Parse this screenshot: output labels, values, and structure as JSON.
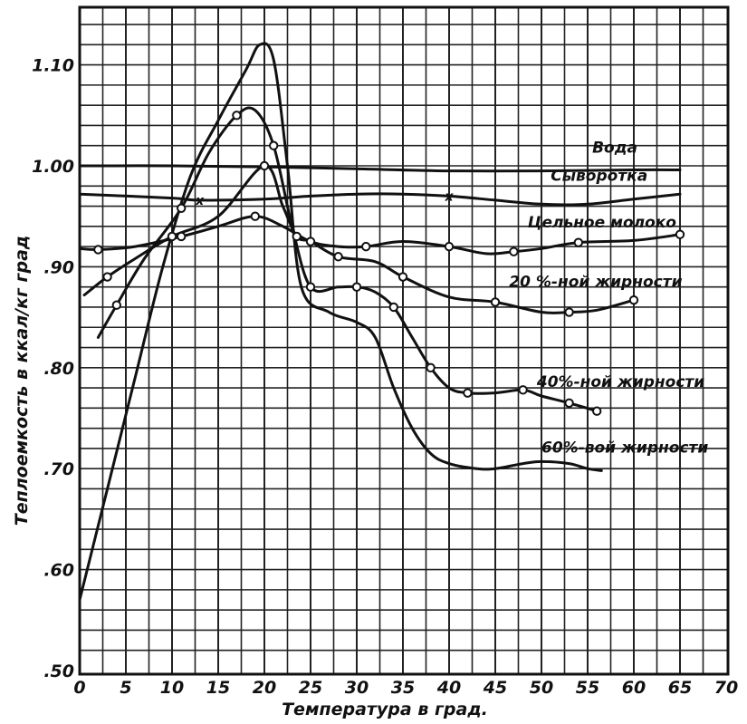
{
  "chart_data": {
    "type": "line",
    "title": "",
    "xlabel": "Температура  в  град.",
    "ylabel": "Теплоемкость  в ккал/кг град",
    "xlim": [
      0,
      70
    ],
    "ylim": [
      0.5,
      1.15
    ],
    "grid": true,
    "legend": "inline labels",
    "x_ticks": [
      "0",
      "5",
      "10",
      "15",
      "20",
      "25",
      "30",
      "35",
      "40",
      "45",
      "50",
      "55",
      "60",
      "65",
      "70"
    ],
    "y_ticks": [
      {
        "value": 0.5,
        "label": ".50"
      },
      {
        "value": 0.6,
        "label": ".60"
      },
      {
        "value": 0.7,
        "label": ".70"
      },
      {
        "value": 0.8,
        "label": ".80"
      },
      {
        "value": 0.9,
        "label": ".90"
      },
      {
        "value": 1.0,
        "label": "1.00"
      },
      {
        "value": 1.1,
        "label": "1.10"
      }
    ],
    "series": [
      {
        "name": "Вода",
        "color": "#111111",
        "marker": "none",
        "x": [
          0,
          10,
          20,
          30,
          40,
          50,
          60,
          65
        ],
        "y": [
          1.0,
          1.0,
          0.999,
          0.997,
          0.995,
          0.995,
          0.996,
          0.996
        ]
      },
      {
        "name": "Сыворотка",
        "color": "#111111",
        "marker": "x",
        "x": [
          0,
          10,
          13,
          20,
          25,
          30,
          35,
          40,
          45,
          50,
          55,
          60,
          65
        ],
        "y": [
          0.972,
          0.968,
          0.966,
          0.967,
          0.97,
          0.972,
          0.972,
          0.97,
          0.966,
          0.962,
          0.962,
          0.967,
          0.972
        ]
      },
      {
        "name": "Цельное молоко",
        "color": "#111111",
        "marker": "circle",
        "x": [
          0,
          2,
          6,
          11,
          15,
          19,
          22,
          25,
          28,
          31,
          35,
          40,
          44,
          47,
          50,
          54,
          60,
          65
        ],
        "y": [
          0.918,
          0.917,
          0.92,
          0.93,
          0.94,
          0.95,
          0.94,
          0.925,
          0.92,
          0.92,
          0.925,
          0.92,
          0.913,
          0.915,
          0.918,
          0.924,
          0.926,
          0.932
        ]
      },
      {
        "name": "20 %-ной жирности",
        "color": "#111111",
        "marker": "circle",
        "x": [
          0.5,
          3,
          6,
          10,
          15,
          20,
          22,
          23.5,
          25,
          28,
          32,
          35,
          40,
          45,
          50,
          53,
          56,
          60
        ],
        "y": [
          0.872,
          0.89,
          0.908,
          0.93,
          0.95,
          1.0,
          0.96,
          0.93,
          0.925,
          0.91,
          0.905,
          0.89,
          0.87,
          0.865,
          0.855,
          0.855,
          0.857,
          0.867
        ]
      },
      {
        "name": "40%-ной жирности",
        "color": "#111111",
        "marker": "circle",
        "x": [
          2,
          4,
          7,
          11,
          14,
          17,
          19,
          21,
          23,
          25,
          28,
          30,
          32,
          34,
          36,
          38,
          40,
          42,
          45,
          48,
          50,
          53,
          56
        ],
        "y": [
          0.83,
          0.862,
          0.908,
          0.958,
          1.013,
          1.05,
          1.055,
          1.02,
          0.94,
          0.88,
          0.88,
          0.88,
          0.875,
          0.86,
          0.83,
          0.8,
          0.78,
          0.775,
          0.775,
          0.778,
          0.772,
          0.765,
          0.757
        ]
      },
      {
        "name": "60%-вой жирности",
        "color": "#111111",
        "marker": "none",
        "x": [
          0,
          3,
          6,
          9,
          12,
          15,
          18,
          19.5,
          21,
          22.5,
          24,
          27,
          30,
          32,
          34,
          36,
          38,
          40,
          43,
          45,
          48,
          50,
          53,
          55,
          56.5
        ],
        "y": [
          0.57,
          0.68,
          0.79,
          0.9,
          0.99,
          1.045,
          1.095,
          1.12,
          1.105,
          1.0,
          0.88,
          0.855,
          0.845,
          0.83,
          0.78,
          0.74,
          0.715,
          0.705,
          0.7,
          0.7,
          0.705,
          0.707,
          0.705,
          0.7,
          0.698
        ]
      }
    ]
  }
}
